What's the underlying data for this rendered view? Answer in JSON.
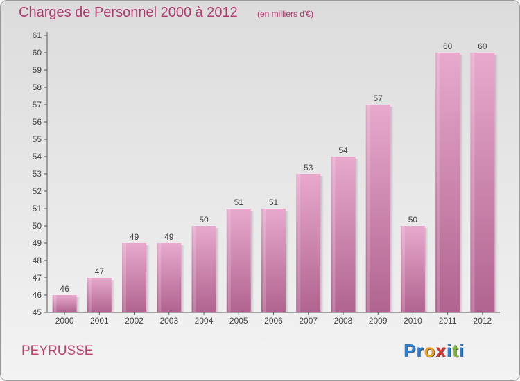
{
  "title": "Charges de Personnel 2000 à 2012",
  "subtitle": "(en milliers d'€)",
  "commune": "PEYRUSSE",
  "logo": {
    "text": "Proxiti",
    "letters": [
      {
        "char": "P",
        "color": "#2a7fd0"
      },
      {
        "char": "r",
        "color": "#2a7fd0"
      },
      {
        "char": "o",
        "color": "#f0a020"
      },
      {
        "char": "x",
        "color": "#e03030"
      },
      {
        "char": "i",
        "color": "#2a7fd0"
      },
      {
        "char": "t",
        "color": "#7ab830"
      },
      {
        "char": "i",
        "color": "#2a7fd0"
      }
    ]
  },
  "colors": {
    "bar_top": "#e8a9cd",
    "bar_bottom": "#b0648f",
    "axis": "#555555",
    "text": "#444444"
  },
  "chart_data": {
    "type": "bar",
    "title": "Charges de Personnel 2000 à 2012",
    "subtitle": "(en milliers d'€)",
    "categories": [
      "2000",
      "2001",
      "2002",
      "2003",
      "2004",
      "2005",
      "2006",
      "2007",
      "2008",
      "2009",
      "2010",
      "2011",
      "2012"
    ],
    "values": [
      46,
      47,
      49,
      49,
      50,
      51,
      51,
      53,
      54,
      57,
      50,
      60,
      60
    ],
    "ylim": [
      45,
      61
    ],
    "yticks": [
      45,
      46,
      47,
      48,
      49,
      50,
      51,
      52,
      53,
      54,
      55,
      56,
      57,
      58,
      59,
      60,
      61
    ],
    "grid": false,
    "data_labels": true
  }
}
